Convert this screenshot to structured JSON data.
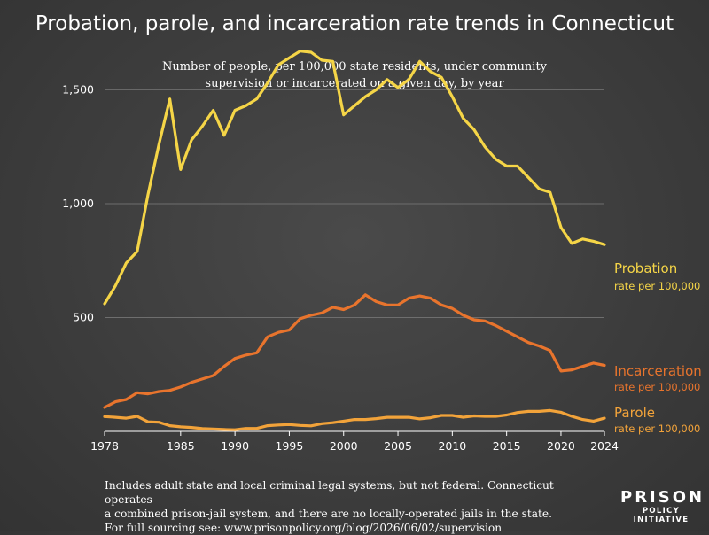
{
  "title": "Probation, parole, and incarceration rate trends in Connecticut",
  "subtitle_line1": "Number of people, per 100,000 state residents, under community",
  "subtitle_line2": "supervision or incarcerated on a given day, by year",
  "footnote_line1": "Includes adult state and local criminal legal systems, but not federal. Connecticut operates",
  "footnote_line2": "a combined prison-jail system, and there are no locally-operated jails in the state.",
  "footnote_line3": "For full sourcing see: www.prisonpolicy.org/blog/2026/06/02/supervision",
  "logo": {
    "top": "PRISON",
    "bottom": "POLICY INITIATIVE"
  },
  "chart_data": {
    "type": "line",
    "xlim": [
      1978,
      2024
    ],
    "ylim": [
      0,
      1700
    ],
    "x_ticks": [
      1978,
      1985,
      1990,
      1995,
      2000,
      2005,
      2010,
      2015,
      2020,
      2024
    ],
    "y_ticks": [
      500,
      1000,
      1500
    ],
    "y_tick_labels": [
      "500",
      "1,000",
      "1,500"
    ],
    "grid": "horizontal",
    "x": [
      1978,
      1979,
      1980,
      1981,
      1982,
      1983,
      1984,
      1985,
      1986,
      1987,
      1988,
      1989,
      1990,
      1991,
      1992,
      1993,
      1994,
      1995,
      1996,
      1997,
      1998,
      1999,
      2000,
      2001,
      2002,
      2003,
      2004,
      2005,
      2006,
      2007,
      2008,
      2009,
      2010,
      2011,
      2012,
      2013,
      2014,
      2015,
      2016,
      2017,
      2018,
      2019,
      2020,
      2021,
      2022,
      2023,
      2024
    ],
    "series": [
      {
        "name": "Probation",
        "sublabel": "rate per 100,000",
        "color": "#f5d547",
        "values": [
          560,
          640,
          740,
          790,
          1040,
          1260,
          1460,
          1150,
          1280,
          1340,
          1410,
          1300,
          1410,
          1430,
          1460,
          1530,
          1610,
          1640,
          1670,
          1665,
          1630,
          1625,
          1390,
          1430,
          1470,
          1500,
          1545,
          1510,
          1545,
          1625,
          1580,
          1555,
          1470,
          1375,
          1325,
          1250,
          1195,
          1165,
          1165,
          1115,
          1065,
          1050,
          895,
          825,
          845,
          835,
          820
        ]
      },
      {
        "name": "Incarceration",
        "sublabel": "rate per 100,000",
        "color": "#e8742d",
        "values": [
          105,
          130,
          140,
          170,
          165,
          175,
          180,
          195,
          215,
          230,
          245,
          285,
          320,
          335,
          345,
          415,
          435,
          445,
          495,
          510,
          520,
          545,
          535,
          555,
          600,
          570,
          555,
          555,
          585,
          595,
          585,
          555,
          540,
          510,
          490,
          485,
          465,
          440,
          415,
          390,
          375,
          355,
          265,
          270,
          285,
          300,
          290
        ]
      },
      {
        "name": "Parole",
        "sublabel": "rate per 100,000",
        "color": "#f2a33a",
        "values": [
          65,
          62,
          58,
          66,
          42,
          40,
          25,
          20,
          17,
          12,
          10,
          8,
          7,
          13,
          13,
          25,
          28,
          30,
          26,
          24,
          34,
          38,
          45,
          52,
          52,
          56,
          62,
          62,
          62,
          55,
          60,
          70,
          70,
          62,
          68,
          66,
          66,
          72,
          83,
          88,
          88,
          92,
          84,
          66,
          52,
          45,
          58
        ]
      }
    ]
  }
}
